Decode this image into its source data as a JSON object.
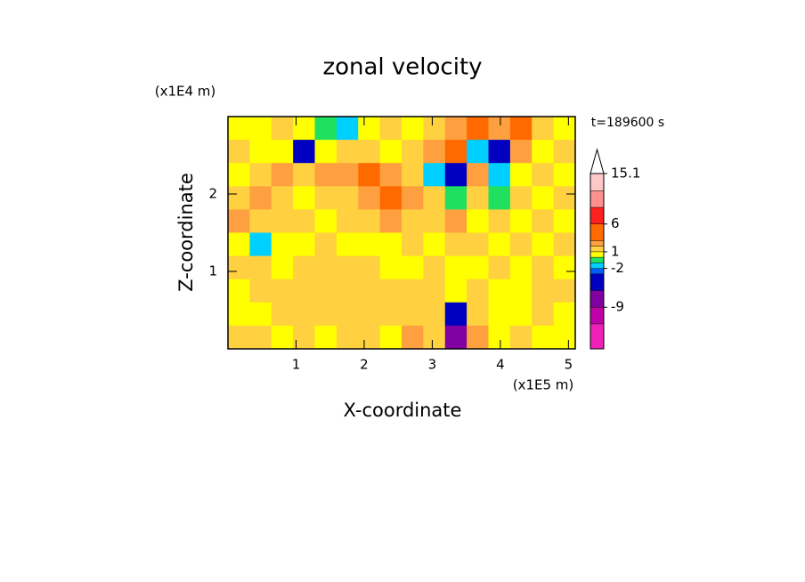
{
  "chart_data": {
    "type": "contour",
    "title": "zonal velocity",
    "xlabel": "X-coordinate",
    "xunit": "(x1E5 m)",
    "ylabel": "Z-coordinate",
    "yunit": "(x1E4 m)",
    "annotation": "t=189600 s",
    "xlim": [
      0,
      5.1
    ],
    "xticks": [
      1,
      2,
      3,
      4,
      5
    ],
    "ylim": [
      0,
      3
    ],
    "yticks": [
      1,
      2
    ],
    "z": [
      [
        0.5,
        0.5,
        1.5,
        0.5,
        -0.5,
        -1.5,
        0.5,
        1.5,
        0.5,
        1.5,
        2.5,
        4,
        2.5,
        4,
        1.5,
        0.5
      ],
      [
        1.5,
        0.5,
        0.5,
        -4,
        0.5,
        1.5,
        1.5,
        0.5,
        1.5,
        2.5,
        4,
        -1.5,
        -4,
        2.5,
        0.5,
        1.5
      ],
      [
        0.5,
        1.5,
        2.5,
        1.5,
        2.5,
        2.5,
        4,
        2.5,
        1.5,
        -1.5,
        -4,
        2.5,
        -1.5,
        0.5,
        1.5,
        0.5
      ],
      [
        1.5,
        2.5,
        1.5,
        0.5,
        1.5,
        1.5,
        2.5,
        4,
        2.5,
        1.5,
        -0.5,
        1.5,
        -0.5,
        1.5,
        0.5,
        1.5
      ],
      [
        2.5,
        1.5,
        1.5,
        1.5,
        0.5,
        1.5,
        1.5,
        2.5,
        1.5,
        1.5,
        2.5,
        0.5,
        1.5,
        0.5,
        1.5,
        0.5
      ],
      [
        0.5,
        -1.5,
        0.5,
        0.5,
        1.5,
        0.5,
        0.5,
        0.5,
        1.5,
        0.5,
        1.5,
        1.5,
        0.5,
        1.5,
        0.5,
        1.5
      ],
      [
        1.5,
        1.5,
        0.5,
        1.5,
        1.5,
        1.5,
        1.5,
        0.5,
        0.5,
        1.5,
        0.5,
        0.5,
        1.5,
        0.5,
        1.5,
        0.5
      ],
      [
        0.5,
        1.5,
        1.5,
        1.5,
        1.5,
        1.5,
        1.5,
        1.5,
        1.5,
        1.5,
        0.5,
        1.5,
        0.5,
        0.5,
        1.5,
        1.5
      ],
      [
        0.5,
        0.5,
        1.5,
        1.5,
        1.5,
        1.5,
        1.5,
        1.5,
        1.5,
        1.5,
        -4,
        1.5,
        0.5,
        0.5,
        1.5,
        0.5
      ],
      [
        1.5,
        1.5,
        0.5,
        1.5,
        0.5,
        1.5,
        1.5,
        0.5,
        2.5,
        1.5,
        -9,
        2.5,
        0.5,
        1.5,
        0.5,
        0.5
      ]
    ],
    "levels": [
      -16.5,
      -12,
      -9,
      -6,
      -3,
      -2,
      -1,
      0,
      1,
      2,
      3,
      6,
      9,
      12,
      15.1
    ],
    "colors": [
      "#f020b8",
      "#c000a8",
      "#8000a0",
      "#0000c0",
      "#0060ff",
      "#00d0ff",
      "#20e060",
      "#ffff00",
      "#ffd040",
      "#ffa040",
      "#ff6a00",
      "#ff2020",
      "#ff9090",
      "#ffc8c8"
    ],
    "clim": [
      -16.5,
      15.1
    ],
    "cticks": [
      15.1,
      6,
      1,
      -2,
      -9
    ]
  }
}
